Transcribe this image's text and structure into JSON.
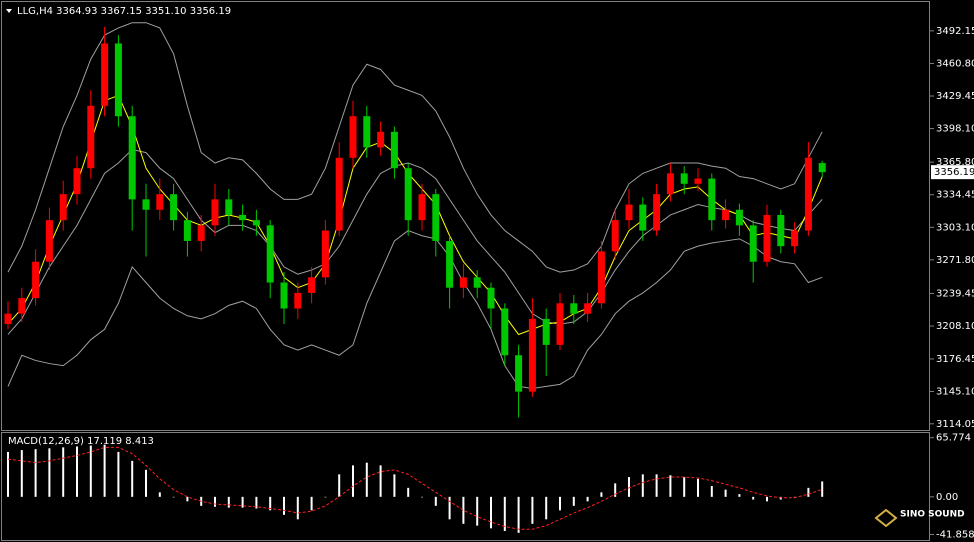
{
  "chart_data": [
    {
      "type": "candlestick",
      "title": "LLG,H4  3364.93 3367.15 3351.10 3356.19",
      "up_color": "#ff0000",
      "down_color": "#00c800",
      "open": [
        3210,
        3220,
        3235,
        3270,
        3310,
        3335,
        3360,
        3420,
        3480,
        3410,
        3330,
        3320,
        3335,
        3310,
        3290,
        3305,
        3330,
        3315,
        3310,
        3305,
        3250,
        3225,
        3240,
        3255,
        3300,
        3370,
        3410,
        3380,
        3395,
        3360,
        3310,
        3335,
        3290,
        3245,
        3255,
        3245,
        3225,
        3180,
        3145,
        3215,
        3190,
        3230,
        3220,
        3230,
        3280,
        3310,
        3325,
        3300,
        3335,
        3355,
        3345,
        3350,
        3310,
        3320,
        3305,
        3270,
        3315,
        3285,
        3300,
        3364.93
      ],
      "high": [
        3232,
        3245,
        3282,
        3322,
        3348,
        3372,
        3435,
        3496,
        3488,
        3420,
        3345,
        3350,
        3345,
        3318,
        3315,
        3345,
        3340,
        3325,
        3320,
        3310,
        3260,
        3250,
        3265,
        3310,
        3385,
        3425,
        3420,
        3405,
        3400,
        3365,
        3345,
        3340,
        3295,
        3268,
        3262,
        3250,
        3230,
        3190,
        3235,
        3225,
        3240,
        3238,
        3240,
        3290,
        3320,
        3340,
        3332,
        3345,
        3365,
        3362,
        3360,
        3355,
        3330,
        3326,
        3310,
        3325,
        3320,
        3308,
        3385,
        3367.15
      ],
      "low": [
        3205,
        3212,
        3228,
        3262,
        3300,
        3325,
        3350,
        3410,
        3400,
        3300,
        3275,
        3310,
        3300,
        3275,
        3280,
        3295,
        3305,
        3300,
        3295,
        3235,
        3210,
        3215,
        3230,
        3248,
        3295,
        3360,
        3370,
        3372,
        3350,
        3295,
        3300,
        3275,
        3225,
        3235,
        3235,
        3205,
        3170,
        3120,
        3140,
        3160,
        3185,
        3210,
        3212,
        3225,
        3272,
        3302,
        3290,
        3295,
        3328,
        3335,
        3338,
        3300,
        3302,
        3295,
        3250,
        3265,
        3278,
        3278,
        3295,
        3351.1
      ],
      "close": [
        3220,
        3235,
        3270,
        3310,
        3335,
        3360,
        3420,
        3480,
        3410,
        3330,
        3320,
        3335,
        3310,
        3290,
        3305,
        3330,
        3315,
        3310,
        3305,
        3250,
        3225,
        3240,
        3255,
        3300,
        3370,
        3410,
        3380,
        3395,
        3360,
        3310,
        3335,
        3290,
        3245,
        3255,
        3245,
        3225,
        3180,
        3145,
        3215,
        3190,
        3230,
        3220,
        3230,
        3280,
        3310,
        3325,
        3300,
        3335,
        3355,
        3345,
        3350,
        3310,
        3320,
        3305,
        3270,
        3315,
        3285,
        3300,
        3370,
        3356.19
      ],
      "lines": [
        {
          "color": "#a0a0a0",
          "values": [
            3260,
            3285,
            3320,
            3360,
            3400,
            3430,
            3465,
            3488,
            3495,
            3500,
            3500,
            3495,
            3470,
            3420,
            3375,
            3365,
            3370,
            3368,
            3355,
            3340,
            3330,
            3330,
            3335,
            3360,
            3400,
            3440,
            3460,
            3455,
            3440,
            3435,
            3430,
            3415,
            3390,
            3360,
            3335,
            3315,
            3300,
            3290,
            3280,
            3265,
            3260,
            3262,
            3268,
            3285,
            3320,
            3345,
            3355,
            3360,
            3365,
            3365,
            3365,
            3362,
            3360,
            3352,
            3350,
            3345,
            3340,
            3345,
            3370,
            3395
          ]
        },
        {
          "color": "#a0a0a0",
          "values": [
            3200,
            3215,
            3240,
            3265,
            3285,
            3305,
            3330,
            3355,
            3365,
            3378,
            3375,
            3360,
            3350,
            3330,
            3310,
            3298,
            3305,
            3305,
            3300,
            3285,
            3265,
            3258,
            3262,
            3268,
            3285,
            3310,
            3335,
            3355,
            3362,
            3365,
            3360,
            3350,
            3330,
            3310,
            3290,
            3275,
            3260,
            3240,
            3220,
            3212,
            3210,
            3212,
            3222,
            3240,
            3262,
            3280,
            3295,
            3305,
            3315,
            3320,
            3325,
            3322,
            3320,
            3315,
            3308,
            3305,
            3302,
            3300,
            3315,
            3330
          ]
        },
        {
          "color": "#a0a0a0",
          "values": [
            3150,
            3180,
            3175,
            3172,
            3170,
            3180,
            3195,
            3205,
            3230,
            3265,
            3250,
            3235,
            3225,
            3218,
            3215,
            3220,
            3228,
            3232,
            3225,
            3205,
            3190,
            3185,
            3190,
            3185,
            3180,
            3190,
            3230,
            3260,
            3290,
            3300,
            3295,
            3292,
            3275,
            3250,
            3230,
            3205,
            3170,
            3150,
            3148,
            3150,
            3152,
            3160,
            3185,
            3200,
            3220,
            3232,
            3240,
            3250,
            3262,
            3280,
            3285,
            3288,
            3290,
            3292,
            3285,
            3275,
            3270,
            3268,
            3250,
            3255
          ]
        },
        {
          "color": "#ffff00",
          "values": [
            3210,
            3225,
            3250,
            3285,
            3315,
            3345,
            3385,
            3425,
            3430,
            3400,
            3360,
            3340,
            3325,
            3310,
            3305,
            3312,
            3315,
            3312,
            3308,
            3285,
            3255,
            3245,
            3250,
            3268,
            3310,
            3360,
            3380,
            3385,
            3375,
            3355,
            3340,
            3325,
            3295,
            3270,
            3255,
            3240,
            3218,
            3200,
            3205,
            3210,
            3212,
            3220,
            3225,
            3245,
            3275,
            3300,
            3310,
            3320,
            3335,
            3340,
            3342,
            3330,
            3320,
            3315,
            3295,
            3298,
            3295,
            3292,
            3320,
            3352
          ]
        }
      ],
      "ylim": [
        3110,
        3518
      ],
      "yticks": [
        3492.15,
        {
          "value": 3460.8,
          "label": "3460.80"
        },
        3429.45,
        {
          "value": 3398.1,
          "label": "3398.10"
        },
        {
          "value": 3365.8,
          "label": "3365.80"
        },
        3334.45,
        {
          "value": 3303.1,
          "label": "3303.10"
        },
        {
          "value": 3271.8,
          "label": "3271.80"
        },
        3239.45,
        {
          "value": 3208.1,
          "label": "3208.10"
        },
        3176.45,
        {
          "value": 3145.1,
          "label": "3145.10"
        },
        3114.05
      ]
    },
    {
      "type": "macd",
      "title": "MACD(12,26,9) 17.119 8.413",
      "histogram": {
        "color": "#ffffff",
        "values": [
          50,
          52,
          53,
          54,
          55,
          56,
          57,
          58,
          50,
          40,
          30,
          5,
          0,
          -5,
          -10,
          -11,
          -12,
          -12,
          -13,
          -15,
          -20,
          -25,
          -15,
          0,
          25,
          35,
          38,
          35,
          25,
          10,
          0,
          -10,
          -25,
          -30,
          -32,
          -35,
          -38,
          -40,
          -30,
          -25,
          -15,
          -10,
          -5,
          5,
          15,
          22,
          25,
          25,
          24,
          22,
          20,
          12,
          8,
          3,
          -3,
          -5,
          -3,
          0,
          10,
          17.119
        ]
      },
      "signal": {
        "color": "#ff2020",
        "values": [
          42,
          40,
          38,
          40,
          43,
          46,
          50,
          55,
          55,
          48,
          35,
          20,
          8,
          0,
          -5,
          -8,
          -9,
          -10,
          -11,
          -13,
          -15,
          -18,
          -16,
          -10,
          0,
          12,
          22,
          28,
          30,
          25,
          15,
          5,
          -5,
          -15,
          -22,
          -28,
          -33,
          -36,
          -36,
          -32,
          -25,
          -18,
          -12,
          -5,
          3,
          10,
          16,
          20,
          22,
          22,
          21,
          18,
          14,
          10,
          5,
          1,
          -1,
          -1,
          3,
          8.413
        ]
      },
      "ylim": [
        -48,
        71
      ],
      "yticks": [
        65.774,
        {
          "value": 0,
          "label": "0.00"
        },
        -41.858
      ]
    }
  ],
  "logo": "SINO SOUND"
}
